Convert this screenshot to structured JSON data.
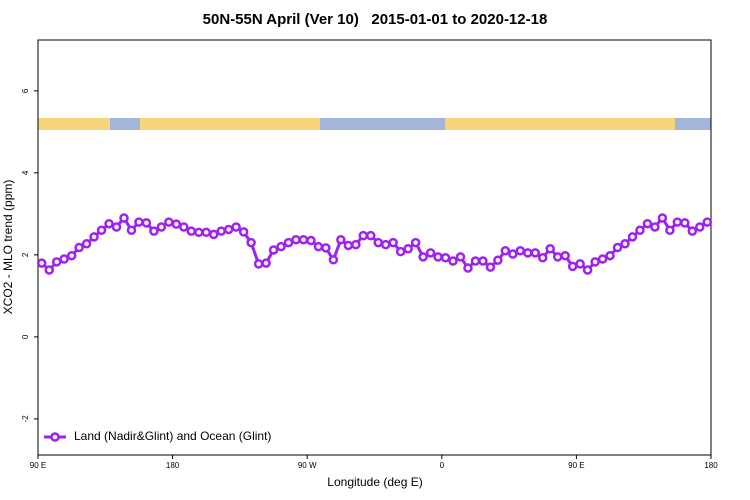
{
  "chart_data": {
    "type": "line",
    "title": "50N-55N April (Ver 10)   2015-01-01 to 2020-12-18",
    "x_label": "Longitude (deg E)",
    "y_label": "XCO2 - MLO trend (ppm)",
    "x": [
      92.5,
      97.5,
      102.5,
      107.5,
      112.5,
      117.5,
      122.5,
      127.5,
      132.5,
      137.5,
      142.5,
      147.5,
      152.5,
      157.5,
      162.5,
      167.5,
      172.5,
      177.5,
      182.5,
      187.5,
      192.5,
      197.5,
      202.5,
      207.5,
      212.5,
      217.5,
      222.5,
      227.5,
      232.5,
      237.5,
      242.5,
      247.5,
      252.5,
      257.5,
      262.5,
      267.5,
      272.5,
      277.5,
      282.5,
      287.5,
      292.5,
      297.5,
      302.5,
      307.5,
      312.5,
      317.5,
      322.5,
      327.5,
      332.5,
      337.5,
      342.5,
      347.5,
      352.5,
      357.5,
      362.5,
      367.5,
      372.5,
      377.5,
      382.5,
      387.5,
      392.5,
      397.5,
      402.5,
      407.5,
      412.5,
      417.5,
      422.5,
      427.5,
      432.5,
      437.5,
      442.5,
      447.5,
      452.5,
      457.5,
      462.5,
      467.5,
      472.5,
      477.5,
      482.5,
      487.5,
      492.5,
      497.5,
      502.5,
      507.5,
      512.5,
      517.5,
      522.5,
      527.5,
      532.5,
      537.5
    ],
    "series": [
      {
        "name": "Land (Nadir&Glint) and Ocean (Glint)",
        "color": "#a020f0",
        "values": [
          1.8,
          1.63,
          1.83,
          1.9,
          1.98,
          2.18,
          2.27,
          2.44,
          2.6,
          2.76,
          2.68,
          2.9,
          2.6,
          2.8,
          2.78,
          2.58,
          2.68,
          2.8,
          2.75,
          2.68,
          2.58,
          2.55,
          2.55,
          2.5,
          2.58,
          2.62,
          2.68,
          2.56,
          2.3,
          1.78,
          1.8,
          2.12,
          2.2,
          2.3,
          2.37,
          2.37,
          2.35,
          2.2,
          2.17,
          1.88,
          2.37,
          2.23,
          2.25,
          2.47,
          2.47,
          2.3,
          2.25,
          2.3,
          2.08,
          2.15,
          2.3,
          1.95,
          2.05,
          1.95,
          1.93,
          1.85,
          1.95,
          1.68,
          1.85,
          1.85,
          1.7,
          1.87,
          2.1,
          2.02,
          2.1,
          2.05,
          2.05,
          1.93,
          2.15,
          1.95,
          1.98,
          1.72,
          1.78,
          1.63,
          1.83,
          1.9,
          1.98,
          2.18,
          2.27,
          2.44,
          2.6,
          2.76,
          2.68,
          2.9,
          2.6,
          2.8,
          2.78,
          2.58,
          2.68,
          2.8
        ]
      }
    ],
    "xlim": [
      90,
      540
    ],
    "xticks": [
      {
        "value": 90,
        "label": "90 E"
      },
      180,
      {
        "value": 270,
        "label": "90 W"
      },
      {
        "value": 360,
        "label": "0"
      },
      {
        "value": 450,
        "label": "90 E"
      },
      {
        "value": 540,
        "label": "180"
      }
    ],
    "ylim": [
      -2.88,
      7.24
    ],
    "yticks": [
      -2,
      0,
      2,
      4,
      6
    ],
    "legend": "bottom-left"
  }
}
